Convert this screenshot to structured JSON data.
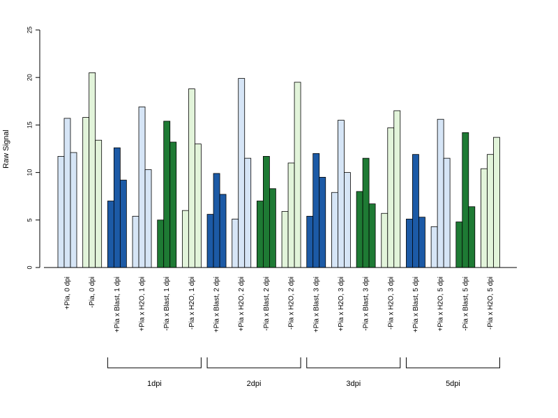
{
  "chart_data": {
    "type": "bar",
    "ylabel": "Raw Signal",
    "xlabel": "",
    "ylim": [
      0,
      25
    ],
    "yticks": [
      0,
      5,
      10,
      15,
      20,
      25
    ],
    "grid": false,
    "categories": [
      "+Pia, 0 dpi",
      "-Pia, 0 dpi",
      "+Pia x Blast, 1 dpi",
      "+Pia x H2O, 1 dpi",
      "-Pia x Blast, 1 dpi",
      "-Pia x H2O, 1 dpi",
      "+Pia x Blast, 2 dpi",
      "+Pia x H2O, 2 dpi",
      "-Pia x Blast, 2 dpi",
      "-Pia x H2O, 2 dpi",
      "+Pia x Blast, 3 dpi",
      "+Pia x H2O, 3 dpi",
      "-Pia x Blast, 3 dpi",
      "-Pia x H2O, 3 dpi",
      "+Pia x Blast, 5 dpi",
      "+Pia x H2O, 5 dpi",
      "-Pia x Blast, 5 dpi",
      "-Pia x H2O, 5 dpi"
    ],
    "category_colors": [
      "#d6e5f6",
      "#e2f4da",
      "#1c5aa6",
      "#d6e5f6",
      "#1e7a34",
      "#e2f4da",
      "#1c5aa6",
      "#d6e5f6",
      "#1e7a34",
      "#e2f4da",
      "#1c5aa6",
      "#d6e5f6",
      "#1e7a34",
      "#e2f4da",
      "#1c5aa6",
      "#d6e5f6",
      "#1e7a34",
      "#e2f4da"
    ],
    "replicate_values": [
      [
        11.7,
        15.7,
        12.1
      ],
      [
        15.8,
        20.5,
        13.4
      ],
      [
        7.0,
        12.6,
        9.2
      ],
      [
        5.4,
        16.9,
        10.3
      ],
      [
        5.0,
        15.4,
        13.2
      ],
      [
        6.0,
        18.8,
        13.0
      ],
      [
        5.6,
        9.9,
        7.7
      ],
      [
        5.1,
        19.9,
        11.5
      ],
      [
        7.0,
        11.7,
        8.3
      ],
      [
        5.9,
        11.0,
        19.5
      ],
      [
        5.4,
        12.0,
        9.5
      ],
      [
        7.9,
        15.5,
        10.0
      ],
      [
        8.0,
        11.5,
        6.7
      ],
      [
        5.7,
        14.7,
        16.5
      ],
      [
        5.1,
        11.9,
        5.3
      ],
      [
        4.3,
        15.6,
        11.5
      ],
      [
        4.8,
        14.2,
        6.4
      ],
      [
        10.4,
        11.9,
        13.7
      ]
    ],
    "groups": [
      {
        "label": "1dpi",
        "from": 2,
        "to": 5
      },
      {
        "label": "2dpi",
        "from": 6,
        "to": 9
      },
      {
        "label": "3dpi",
        "from": 10,
        "to": 13
      },
      {
        "label": "5dpi",
        "from": 14,
        "to": 17
      }
    ]
  }
}
